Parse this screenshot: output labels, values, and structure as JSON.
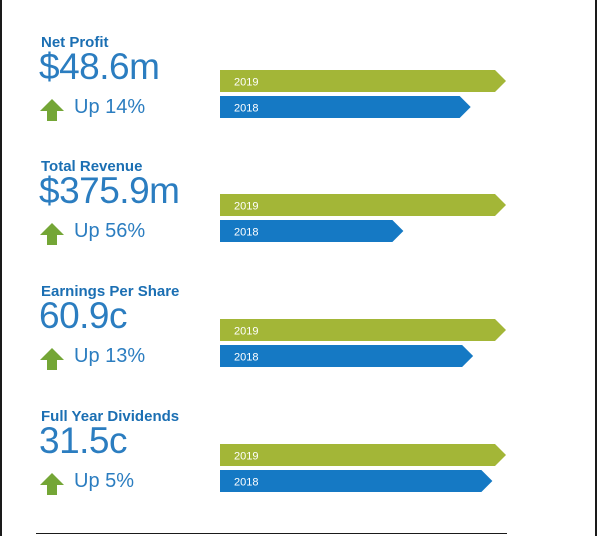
{
  "colors": {
    "current": "#a3b637",
    "prior": "#1579c4",
    "text": "#2b7dc0",
    "arrow": "#74a636"
  },
  "chart_data": {
    "type": "bar",
    "orientation": "horizontal",
    "panels": [
      {
        "title": "Net Profit",
        "value": "$48.6m",
        "change": "Up 14%",
        "arrow": "arrow-up-icon",
        "series": [
          {
            "name": "2019",
            "value": 48.6
          },
          {
            "name": "2018",
            "value": 42.6
          }
        ]
      },
      {
        "title": "Total Revenue",
        "value": "$375.9m",
        "change": "Up 56%",
        "arrow": "arrow-up-icon",
        "series": [
          {
            "name": "2019",
            "value": 375.9
          },
          {
            "name": "2018",
            "value": 241.0
          }
        ]
      },
      {
        "title": "Earnings Per Share",
        "value": "60.9c",
        "change": "Up 13%",
        "arrow": "arrow-up-icon",
        "series": [
          {
            "name": "2019",
            "value": 60.9
          },
          {
            "name": "2018",
            "value": 53.9
          }
        ]
      },
      {
        "title": "Full Year Dividends",
        "value": "31.5c",
        "change": "Up 5%",
        "arrow": "arrow-up-icon",
        "series": [
          {
            "name": "2019",
            "value": 31.5
          },
          {
            "name": "2018",
            "value": 30.0
          }
        ]
      }
    ]
  }
}
